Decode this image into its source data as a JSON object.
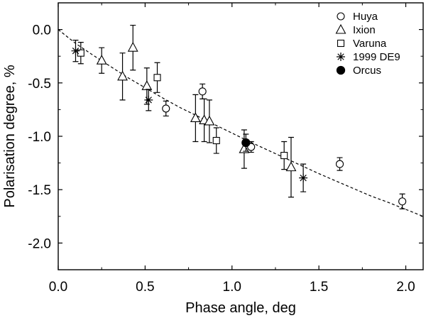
{
  "chart_data": {
    "type": "scatter",
    "title": "",
    "xlabel": "Phase angle, deg",
    "ylabel": "Polarisation degree, %",
    "xlim": [
      0.0,
      2.1
    ],
    "ylim": [
      -2.25,
      0.25
    ],
    "xticks": [
      0.0,
      0.5,
      1.0,
      1.5,
      2.0
    ],
    "xtick_labels": [
      "0.0",
      "0.5",
      "1.0",
      "1.5",
      "2.0"
    ],
    "yticks": [
      0.0,
      -0.5,
      -1.0,
      -1.5,
      -2.0
    ],
    "ytick_labels": [
      "0.0",
      "-0.5",
      "-1.0",
      "-1.5",
      "-2.0"
    ],
    "legend_position": "top-right",
    "series": [
      {
        "name": "Huya",
        "marker": "circle",
        "points": [
          {
            "x": 0.62,
            "y": -0.74,
            "err": 0.07
          },
          {
            "x": 0.83,
            "y": -0.58,
            "err": 0.07
          },
          {
            "x": 1.11,
            "y": -1.1,
            "err": 0.05
          },
          {
            "x": 1.62,
            "y": -1.26,
            "err": 0.06
          },
          {
            "x": 1.98,
            "y": -1.61,
            "err": 0.07
          }
        ]
      },
      {
        "name": "Ixion",
        "marker": "triangle",
        "points": [
          {
            "x": 0.25,
            "y": -0.29,
            "err": 0.12
          },
          {
            "x": 0.37,
            "y": -0.44,
            "err": 0.22
          },
          {
            "x": 0.43,
            "y": -0.17,
            "err": 0.21
          },
          {
            "x": 0.51,
            "y": -0.53,
            "err": 0.17
          },
          {
            "x": 0.79,
            "y": -0.83,
            "err": 0.22
          },
          {
            "x": 0.84,
            "y": -0.85,
            "err": 0.2
          },
          {
            "x": 0.87,
            "y": -0.86,
            "err": 0.2
          },
          {
            "x": 1.07,
            "y": -1.12,
            "err": 0.18
          },
          {
            "x": 1.34,
            "y": -1.29,
            "err": 0.28
          }
        ]
      },
      {
        "name": "Varuna",
        "marker": "square",
        "points": [
          {
            "x": 0.13,
            "y": -0.22,
            "err": 0.1
          },
          {
            "x": 0.57,
            "y": -0.45,
            "err": 0.14
          },
          {
            "x": 0.91,
            "y": -1.04,
            "err": 0.12
          },
          {
            "x": 1.3,
            "y": -1.18,
            "err": 0.13
          }
        ]
      },
      {
        "name": "1999 DE9",
        "marker": "star",
        "points": [
          {
            "x": 0.1,
            "y": -0.2,
            "err": 0.1
          },
          {
            "x": 0.52,
            "y": -0.66,
            "err": 0.1
          },
          {
            "x": 1.41,
            "y": -1.39,
            "err": 0.13
          }
        ]
      },
      {
        "name": "Orcus",
        "marker": "filled-circle",
        "points": [
          {
            "x": 1.08,
            "y": -1.06,
            "err": 0.08
          }
        ]
      }
    ],
    "fit_curve": {
      "style": "dashed",
      "points": [
        {
          "x": 0.0,
          "y": 0.0
        },
        {
          "x": 0.1,
          "y": -0.13
        },
        {
          "x": 0.2,
          "y": -0.24
        },
        {
          "x": 0.3,
          "y": -0.345
        },
        {
          "x": 0.4,
          "y": -0.45
        },
        {
          "x": 0.5,
          "y": -0.545
        },
        {
          "x": 0.6,
          "y": -0.64
        },
        {
          "x": 0.7,
          "y": -0.73
        },
        {
          "x": 0.8,
          "y": -0.81
        },
        {
          "x": 0.9,
          "y": -0.89
        },
        {
          "x": 1.0,
          "y": -0.97
        },
        {
          "x": 1.1,
          "y": -1.05
        },
        {
          "x": 1.2,
          "y": -1.125
        },
        {
          "x": 1.3,
          "y": -1.2
        },
        {
          "x": 1.4,
          "y": -1.275
        },
        {
          "x": 1.5,
          "y": -1.35
        },
        {
          "x": 1.6,
          "y": -1.42
        },
        {
          "x": 1.7,
          "y": -1.49
        },
        {
          "x": 1.8,
          "y": -1.56
        },
        {
          "x": 1.9,
          "y": -1.62
        },
        {
          "x": 2.0,
          "y": -1.685
        },
        {
          "x": 2.1,
          "y": -1.75
        }
      ]
    }
  }
}
